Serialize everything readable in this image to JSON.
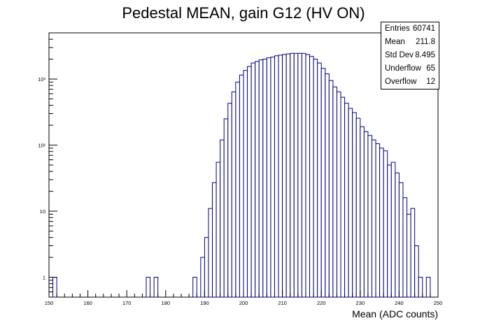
{
  "chart_data": {
    "type": "bar",
    "title": "Pedestal MEAN, gain G12 (HV ON)",
    "xlabel": "Mean (ADC counts)",
    "ylabel": "",
    "xlim": [
      150,
      250
    ],
    "ylim": [
      0.5,
      5000
    ],
    "log_y": true,
    "bin_width": 1,
    "line_color": "#000080",
    "x_ticks": [
      "150",
      "160",
      "170",
      "180",
      "190",
      "200",
      "210",
      "220",
      "230",
      "240",
      "250"
    ],
    "y_ticks": [
      {
        "value": 1,
        "label": "1"
      },
      {
        "value": 10,
        "label": "10"
      },
      {
        "value": 100,
        "label": "10²"
      },
      {
        "value": 1000,
        "label": "10³"
      }
    ],
    "bins": [
      {
        "x": 151,
        "y": 1
      },
      {
        "x": 175,
        "y": 1
      },
      {
        "x": 177,
        "y": 1
      },
      {
        "x": 187,
        "y": 1
      },
      {
        "x": 189,
        "y": 2
      },
      {
        "x": 190,
        "y": 4
      },
      {
        "x": 191,
        "y": 11
      },
      {
        "x": 192,
        "y": 27
      },
      {
        "x": 193,
        "y": 55
      },
      {
        "x": 194,
        "y": 120
      },
      {
        "x": 195,
        "y": 250
      },
      {
        "x": 196,
        "y": 430
      },
      {
        "x": 197,
        "y": 640
      },
      {
        "x": 198,
        "y": 900
      },
      {
        "x": 199,
        "y": 1150
      },
      {
        "x": 200,
        "y": 1350
      },
      {
        "x": 201,
        "y": 1550
      },
      {
        "x": 202,
        "y": 1750
      },
      {
        "x": 203,
        "y": 1850
      },
      {
        "x": 204,
        "y": 1950
      },
      {
        "x": 205,
        "y": 2000
      },
      {
        "x": 206,
        "y": 2100
      },
      {
        "x": 207,
        "y": 2150
      },
      {
        "x": 208,
        "y": 2250
      },
      {
        "x": 209,
        "y": 2300
      },
      {
        "x": 210,
        "y": 2350
      },
      {
        "x": 211,
        "y": 2400
      },
      {
        "x": 212,
        "y": 2450
      },
      {
        "x": 213,
        "y": 2450
      },
      {
        "x": 214,
        "y": 2450
      },
      {
        "x": 215,
        "y": 2450
      },
      {
        "x": 216,
        "y": 2350
      },
      {
        "x": 217,
        "y": 2200
      },
      {
        "x": 218,
        "y": 2000
      },
      {
        "x": 219,
        "y": 1750
      },
      {
        "x": 220,
        "y": 1450
      },
      {
        "x": 221,
        "y": 1200
      },
      {
        "x": 222,
        "y": 950
      },
      {
        "x": 223,
        "y": 760
      },
      {
        "x": 224,
        "y": 640
      },
      {
        "x": 225,
        "y": 530
      },
      {
        "x": 226,
        "y": 430
      },
      {
        "x": 227,
        "y": 360
      },
      {
        "x": 228,
        "y": 310
      },
      {
        "x": 229,
        "y": 255
      },
      {
        "x": 230,
        "y": 190
      },
      {
        "x": 231,
        "y": 160
      },
      {
        "x": 232,
        "y": 140
      },
      {
        "x": 233,
        "y": 120
      },
      {
        "x": 234,
        "y": 105
      },
      {
        "x": 235,
        "y": 90
      },
      {
        "x": 236,
        "y": 82
      },
      {
        "x": 237,
        "y": 50
      },
      {
        "x": 238,
        "y": 55
      },
      {
        "x": 239,
        "y": 38
      },
      {
        "x": 240,
        "y": 27
      },
      {
        "x": 241,
        "y": 16
      },
      {
        "x": 242,
        "y": 9
      },
      {
        "x": 243,
        "y": 11
      },
      {
        "x": 244,
        "y": 3
      },
      {
        "x": 245,
        "y": 1
      },
      {
        "x": 247,
        "y": 1
      }
    ]
  },
  "stats": [
    {
      "label": "Entries",
      "value": "60741"
    },
    {
      "label": "Mean",
      "value": "211.8"
    },
    {
      "label": "Std Dev",
      "value": "8.495"
    },
    {
      "label": "Underflow",
      "value": "65"
    },
    {
      "label": "Overflow",
      "value": "12"
    }
  ]
}
